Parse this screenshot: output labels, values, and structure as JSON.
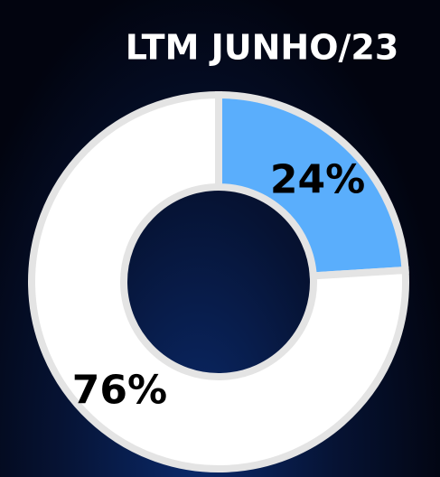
{
  "chart_data": {
    "type": "donut",
    "title": "LTM JUNHO/23",
    "values": [
      24,
      76
    ],
    "value_labels": [
      "24%",
      "76%"
    ],
    "colors": [
      "#5aaefc",
      "#ffffff"
    ]
  }
}
